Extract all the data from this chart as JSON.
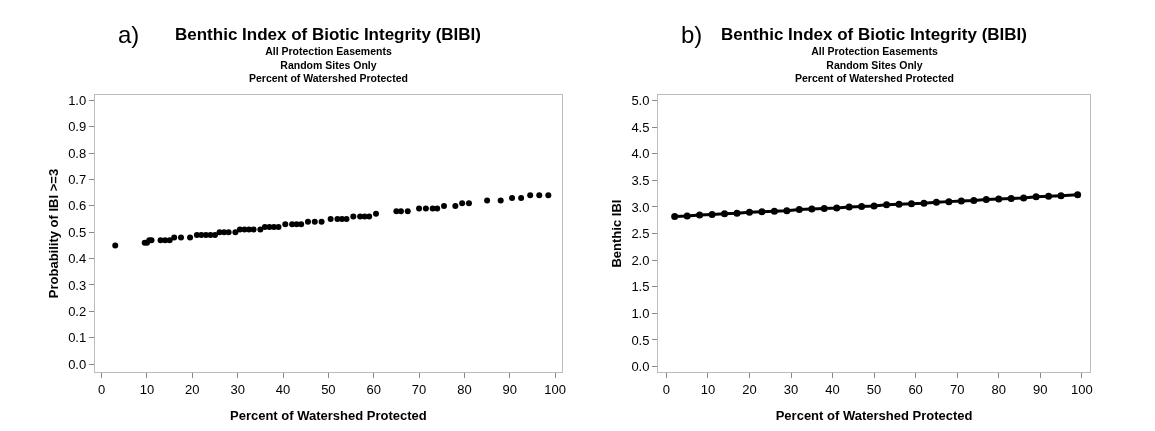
{
  "chart_data": [
    {
      "type": "scatter",
      "title": "Benthic Index of Biotic Integrity (BIBI)",
      "subtitle": "All Protection Easements\nRandom Sites Only\nPercent of Watershed Protected",
      "xlabel": "Percent of Watershed Protected",
      "ylabel": "Probability of IBI >=3",
      "annotations": [
        "a)"
      ],
      "marker": "circle",
      "color": "#000000",
      "x": [
        3,
        9.5,
        10,
        10.5,
        11,
        13,
        14,
        15,
        16,
        17.5,
        19.5,
        21,
        22,
        23,
        24,
        25,
        26,
        27,
        28,
        29.5,
        30.5,
        31.5,
        32.5,
        33.5,
        35,
        36,
        37,
        38,
        39,
        40.5,
        42,
        43,
        44,
        45.5,
        47,
        48.5,
        50.5,
        52,
        53,
        54,
        55.5,
        57,
        58,
        59,
        60.5,
        65,
        66,
        67.5,
        70,
        71.5,
        73,
        74,
        75.5,
        78,
        79.5,
        81,
        85,
        88,
        90.5,
        92.5,
        94.5,
        96.5,
        98.5
      ],
      "values": [
        0.45,
        0.46,
        0.46,
        0.47,
        0.47,
        0.47,
        0.47,
        0.47,
        0.48,
        0.48,
        0.48,
        0.49,
        0.49,
        0.49,
        0.49,
        0.49,
        0.5,
        0.5,
        0.5,
        0.5,
        0.51,
        0.51,
        0.51,
        0.51,
        0.51,
        0.52,
        0.52,
        0.52,
        0.52,
        0.53,
        0.53,
        0.53,
        0.53,
        0.54,
        0.54,
        0.54,
        0.55,
        0.55,
        0.55,
        0.55,
        0.56,
        0.56,
        0.56,
        0.56,
        0.57,
        0.58,
        0.58,
        0.58,
        0.59,
        0.59,
        0.59,
        0.59,
        0.6,
        0.6,
        0.61,
        0.61,
        0.62,
        0.62,
        0.63,
        0.63,
        0.64,
        0.64,
        0.64
      ],
      "xlim": [
        -1.5,
        101.5
      ],
      "ylim": [
        -0.03,
        1.02
      ],
      "xticks": [
        0,
        10,
        20,
        30,
        40,
        50,
        60,
        70,
        80,
        90,
        100
      ],
      "yticks": [
        {
          "value": 0,
          "label": "0.0"
        },
        0.1,
        0.2,
        0.3,
        0.4,
        0.5,
        0.6,
        0.7,
        0.8,
        0.9,
        {
          "value": 1,
          "label": "1.0"
        }
      ]
    },
    {
      "type": "line",
      "title": "Benthic Index of Biotic Integrity (BIBI)",
      "subtitle": "All Protection Easements\nRandom Sites Only\nPercent of Watershed Protected",
      "xlabel": "Percent of Watershed Protected",
      "ylabel": "Benthic IBI",
      "annotations": [
        "b)"
      ],
      "marker": "circle",
      "line_style": "solid",
      "color": "#000000",
      "x": [
        2,
        5,
        8,
        11,
        14,
        17,
        20,
        23,
        26,
        29,
        32,
        35,
        38,
        41,
        44,
        47,
        50,
        53,
        56,
        59,
        62,
        65,
        68,
        71,
        74,
        77,
        80,
        83,
        86,
        89,
        92,
        95,
        99
      ],
      "values": [
        2.82,
        2.83,
        2.85,
        2.86,
        2.87,
        2.88,
        2.9,
        2.91,
        2.92,
        2.93,
        2.95,
        2.96,
        2.97,
        2.98,
        3.0,
        3.01,
        3.02,
        3.04,
        3.05,
        3.06,
        3.07,
        3.09,
        3.1,
        3.11,
        3.12,
        3.14,
        3.15,
        3.16,
        3.17,
        3.19,
        3.2,
        3.21,
        3.23
      ],
      "xlim": [
        -2,
        102
      ],
      "ylim": [
        -0.1,
        5.1
      ],
      "xticks": [
        0,
        10,
        20,
        30,
        40,
        50,
        60,
        70,
        80,
        90,
        100
      ],
      "yticks": [
        {
          "value": 0,
          "label": "0.0"
        },
        0.5,
        {
          "value": 1,
          "label": "1.0"
        },
        1.5,
        {
          "value": 2,
          "label": "2.0"
        },
        2.5,
        {
          "value": 3,
          "label": "3.0"
        },
        3.5,
        {
          "value": 4,
          "label": "4.0"
        },
        4.5,
        {
          "value": 5,
          "label": "5.0"
        }
      ]
    }
  ]
}
